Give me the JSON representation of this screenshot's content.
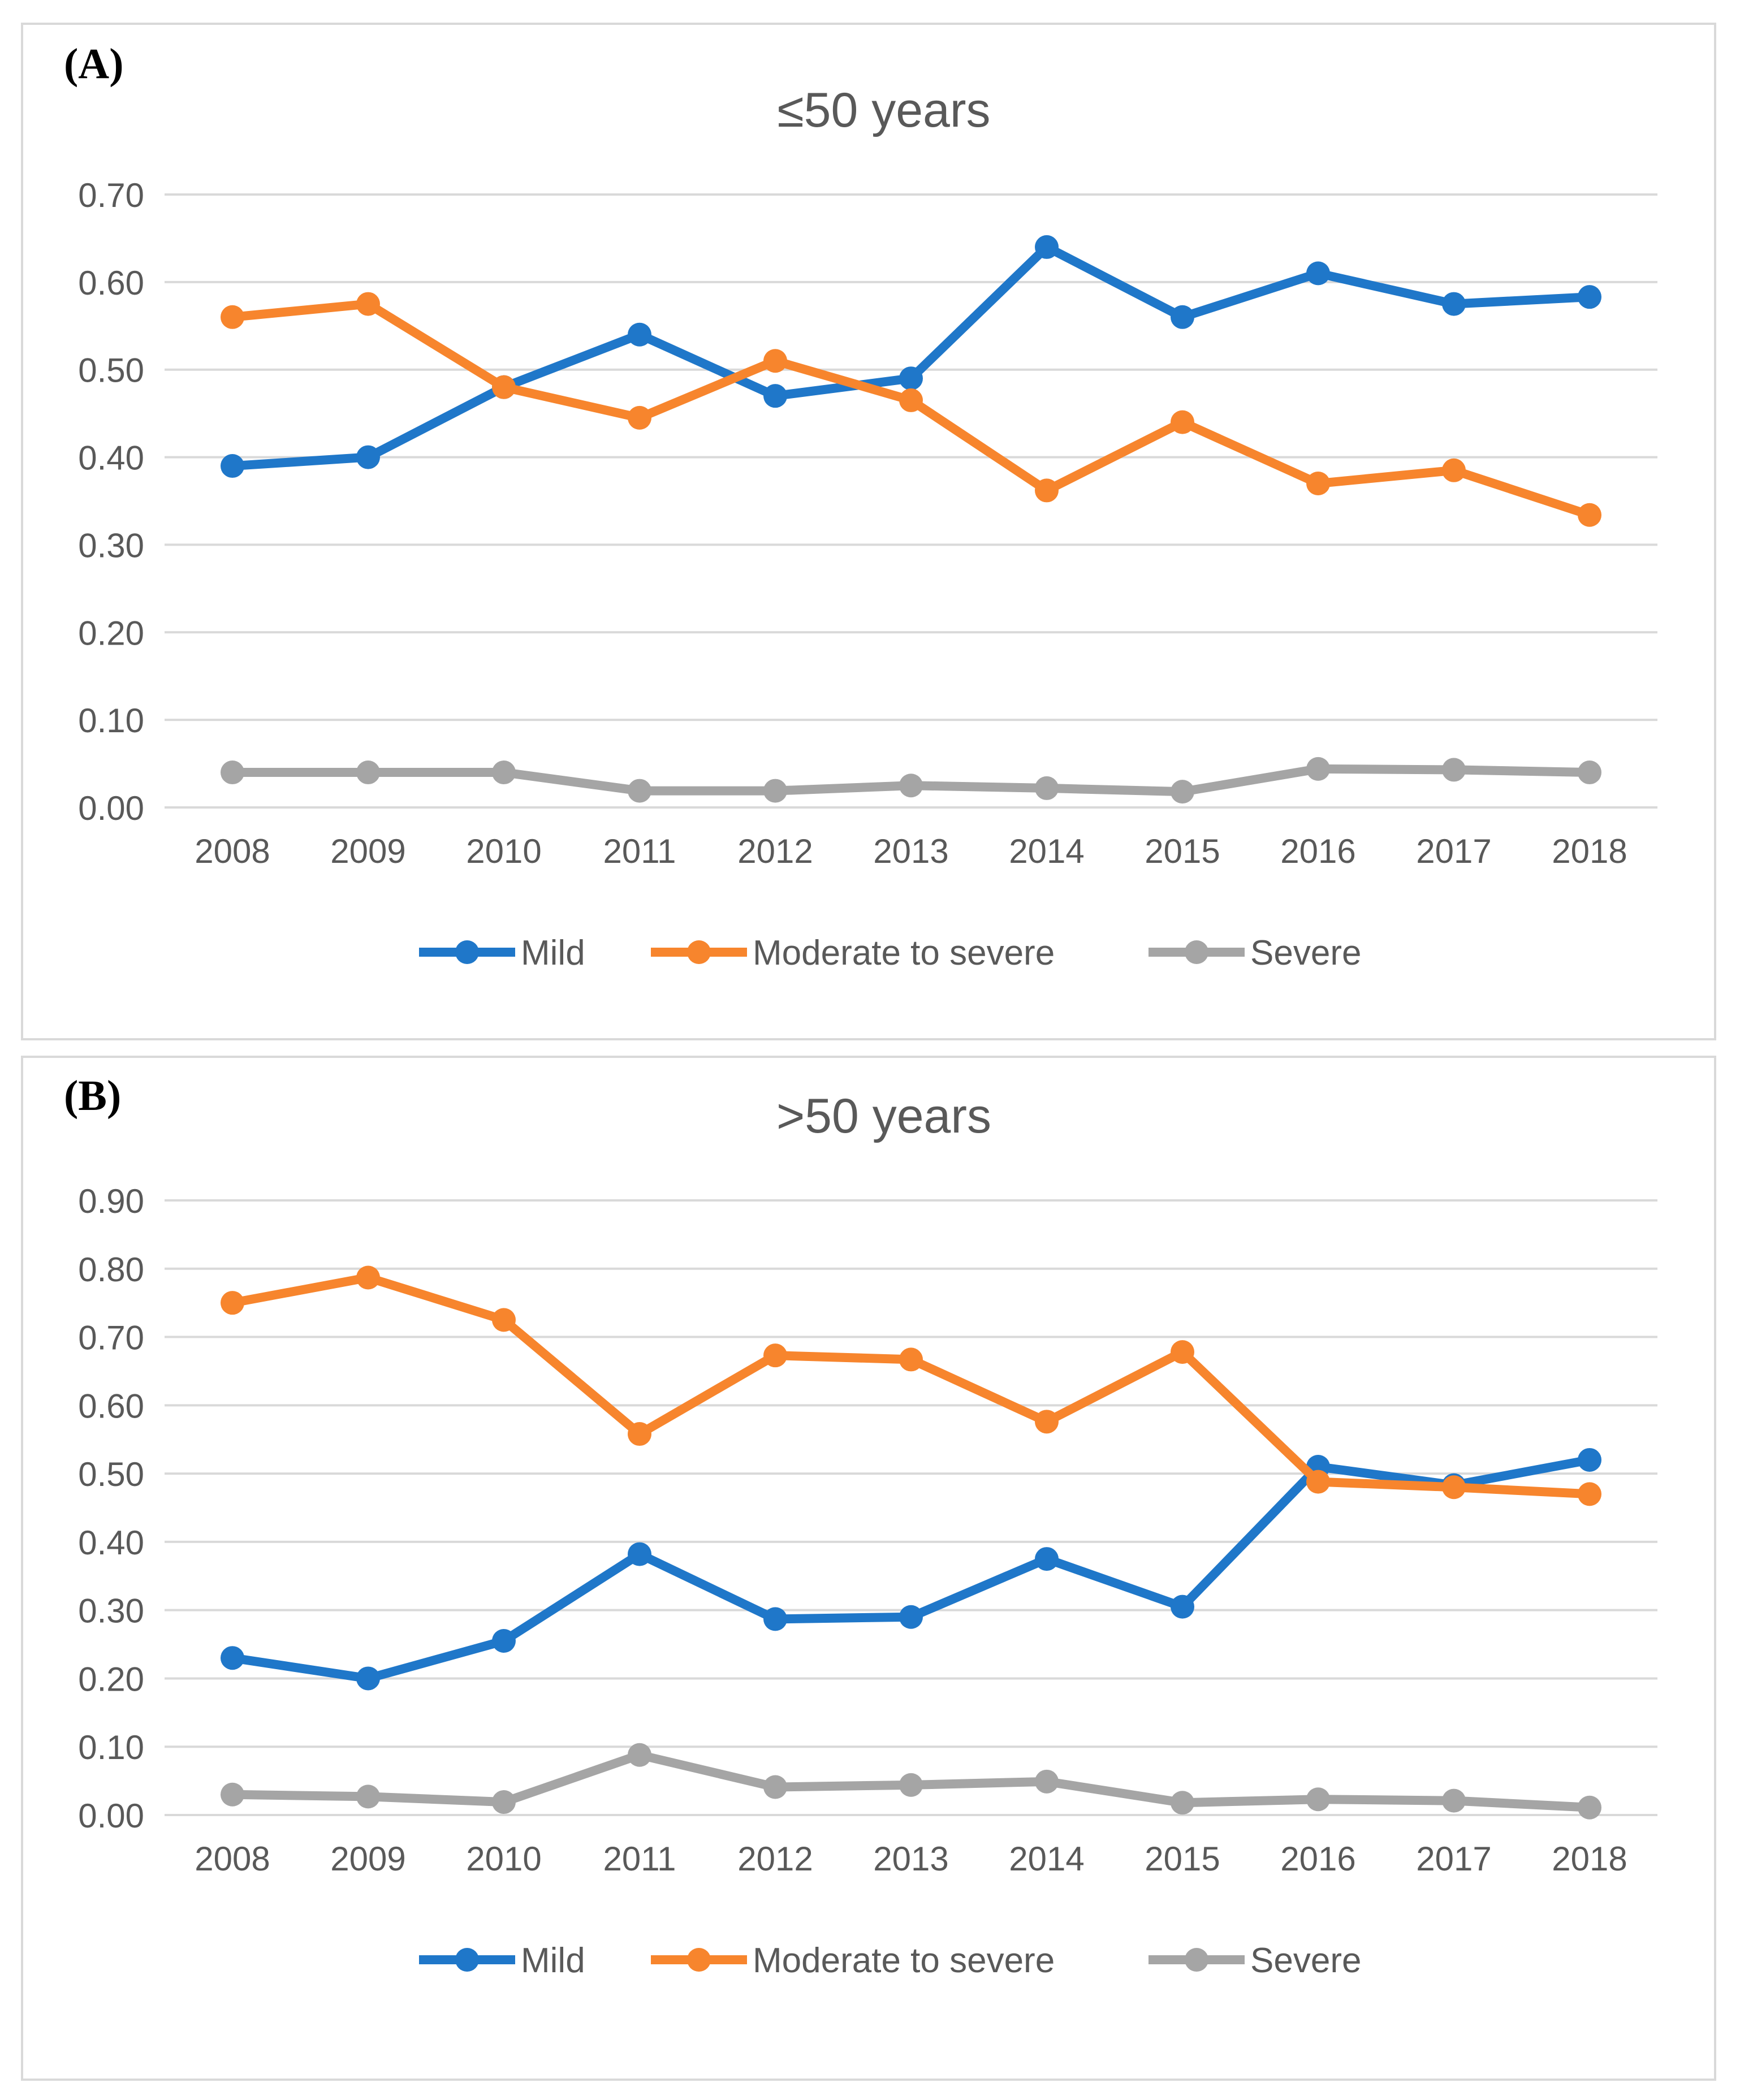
{
  "chart_data": [
    {
      "type": "line",
      "panel_label": "(A)",
      "title": "≤50 years",
      "categories": [
        "2008",
        "2009",
        "2010",
        "2011",
        "2012",
        "2013",
        "2014",
        "2015",
        "2016",
        "2017",
        "2018"
      ],
      "y_ticks": [
        "0.00",
        "0.10",
        "0.20",
        "0.30",
        "0.40",
        "0.50",
        "0.60",
        "0.70"
      ],
      "ylim": [
        0,
        0.7
      ],
      "grid": true,
      "legend_position": "bottom",
      "series": [
        {
          "name": "Mild",
          "color": "#1f77c9",
          "values": [
            0.39,
            0.4,
            0.48,
            0.54,
            0.47,
            0.49,
            0.64,
            0.56,
            0.61,
            0.575,
            0.583
          ]
        },
        {
          "name": "Moderate to severe",
          "color": "#f7852d",
          "values": [
            0.56,
            0.575,
            0.48,
            0.445,
            0.51,
            0.465,
            0.362,
            0.44,
            0.37,
            0.385,
            0.334
          ]
        },
        {
          "name": "Severe",
          "color": "#a5a5a5",
          "values": [
            0.04,
            0.04,
            0.04,
            0.019,
            0.019,
            0.025,
            0.022,
            0.018,
            0.044,
            0.043,
            0.04
          ]
        }
      ]
    },
    {
      "type": "line",
      "panel_label": "(B)",
      "title": ">50 years",
      "categories": [
        "2008",
        "2009",
        "2010",
        "2011",
        "2012",
        "2013",
        "2014",
        "2015",
        "2016",
        "2017",
        "2018"
      ],
      "y_ticks": [
        "0.00",
        "0.10",
        "0.20",
        "0.30",
        "0.40",
        "0.50",
        "0.60",
        "0.70",
        "0.80",
        "0.90"
      ],
      "ylim": [
        0,
        0.9
      ],
      "grid": true,
      "legend_position": "bottom",
      "series": [
        {
          "name": "Mild",
          "color": "#1f77c9",
          "values": [
            0.23,
            0.2,
            0.255,
            0.382,
            0.287,
            0.29,
            0.375,
            0.305,
            0.51,
            0.483,
            0.52
          ]
        },
        {
          "name": "Moderate to severe",
          "color": "#f7852d",
          "values": [
            0.75,
            0.787,
            0.725,
            0.558,
            0.673,
            0.667,
            0.576,
            0.678,
            0.488,
            0.48,
            0.47
          ]
        },
        {
          "name": "Severe",
          "color": "#a5a5a5",
          "values": [
            0.03,
            0.027,
            0.019,
            0.088,
            0.041,
            0.044,
            0.049,
            0.018,
            0.023,
            0.021,
            0.011
          ]
        }
      ]
    }
  ]
}
